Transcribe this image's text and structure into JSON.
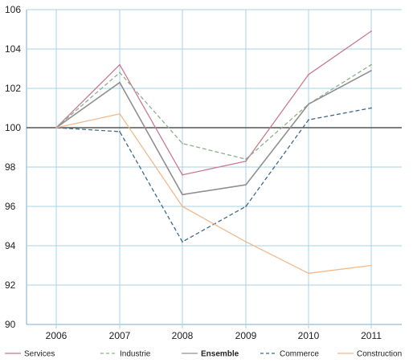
{
  "chart_data": {
    "type": "line",
    "x": [
      "2006",
      "2007",
      "2008",
      "2009",
      "2010",
      "2011"
    ],
    "ylim": [
      90,
      106
    ],
    "yticks": [
      90,
      92,
      94,
      96,
      98,
      100,
      102,
      104,
      106
    ],
    "reference_line": 100,
    "grid": true,
    "legend_position": "bottom",
    "series": [
      {
        "name": "Services",
        "values": [
          100,
          103.2,
          97.6,
          98.3,
          102.7,
          104.9
        ],
        "color": "#c87a90",
        "dash": "solid",
        "bold": false
      },
      {
        "name": "Industrie",
        "values": [
          100,
          102.8,
          99.2,
          98.4,
          101.2,
          103.2
        ],
        "color": "#8db08a",
        "dash": "dashed",
        "bold": false
      },
      {
        "name": "Ensemble",
        "values": [
          100,
          102.3,
          96.6,
          97.1,
          101.2,
          102.9
        ],
        "color": "#909090",
        "dash": "solid",
        "bold": true
      },
      {
        "name": "Commerce",
        "values": [
          100,
          99.8,
          94.2,
          96.0,
          100.4,
          101.0
        ],
        "color": "#3f6a8a",
        "dash": "dashed",
        "bold": false
      },
      {
        "name": "Construction",
        "values": [
          100,
          100.7,
          96.0,
          94.2,
          92.6,
          93.0
        ],
        "color": "#f0b98c",
        "dash": "solid",
        "bold": false
      }
    ]
  }
}
